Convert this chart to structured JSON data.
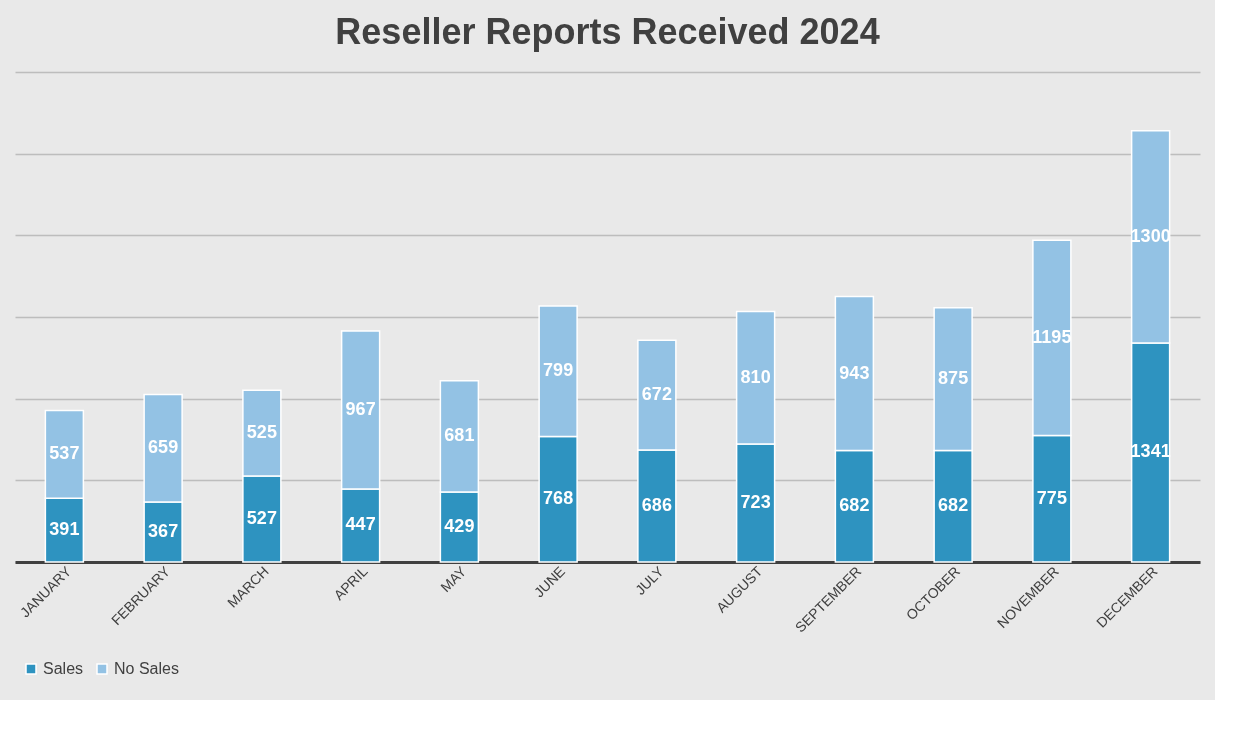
{
  "chart_data": {
    "type": "bar",
    "title": "Reseller Reports Received 2024",
    "stacked": true,
    "categories": [
      "JANUARY",
      "FEBRUARY",
      "MARCH",
      "APRIL",
      "MAY",
      "JUNE",
      "JULY",
      "AUGUST",
      "SEPTEMBER",
      "OCTOBER",
      "NOVEMBER",
      "DECEMBER"
    ],
    "series": [
      {
        "name": "Sales",
        "color": "#2e93c0",
        "values": [
          391,
          367,
          527,
          447,
          429,
          768,
          686,
          723,
          682,
          682,
          775,
          1341
        ]
      },
      {
        "name": "No Sales",
        "color": "#93c2e4",
        "values": [
          537,
          659,
          525,
          967,
          681,
          799,
          672,
          810,
          943,
          875,
          1195,
          1300
        ]
      }
    ],
    "ylim": [
      0,
      3000
    ],
    "yticks": [
      {
        "value": 0,
        "label": null
      },
      {
        "value": 500,
        "label": null
      },
      {
        "value": 1000,
        "label": null
      },
      {
        "value": 1500,
        "label": null
      },
      {
        "value": 2000,
        "label": null
      },
      {
        "value": 2500,
        "label": null
      },
      {
        "value": 3000,
        "label": null
      }
    ],
    "grid": "y",
    "tick_labels": "x",
    "legend": "bottom",
    "data_labels": true
  }
}
